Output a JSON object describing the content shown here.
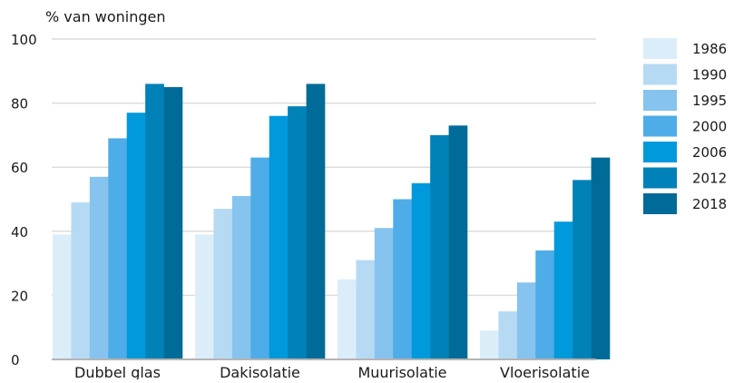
{
  "chart_data": {
    "type": "bar",
    "title": "",
    "ylabel": "% van woningen",
    "xlabel": "",
    "ylim": [
      0,
      100
    ],
    "yticks": [
      0,
      20,
      40,
      60,
      80,
      100
    ],
    "grid": true,
    "legend_position": "right",
    "categories": [
      "Dubbel glas",
      "Dakisolatie",
      "Muurisolatie",
      "Vloerisolatie"
    ],
    "series": [
      {
        "name": "1986",
        "color": "#dcedfa",
        "values": [
          39,
          39,
          25,
          9
        ]
      },
      {
        "name": "1990",
        "color": "#b7daf4",
        "values": [
          49,
          47,
          31,
          15
        ]
      },
      {
        "name": "1995",
        "color": "#86c3ee",
        "values": [
          57,
          51,
          41,
          24
        ]
      },
      {
        "name": "2000",
        "color": "#4eace8",
        "values": [
          69,
          63,
          50,
          34
        ]
      },
      {
        "name": "2006",
        "color": "#0099dc",
        "values": [
          77,
          76,
          55,
          43
        ]
      },
      {
        "name": "2012",
        "color": "#0081b8",
        "values": [
          86,
          79,
          70,
          56
        ]
      },
      {
        "name": "2018",
        "color": "#006b98",
        "values": [
          85,
          86,
          73,
          63
        ]
      }
    ]
  }
}
